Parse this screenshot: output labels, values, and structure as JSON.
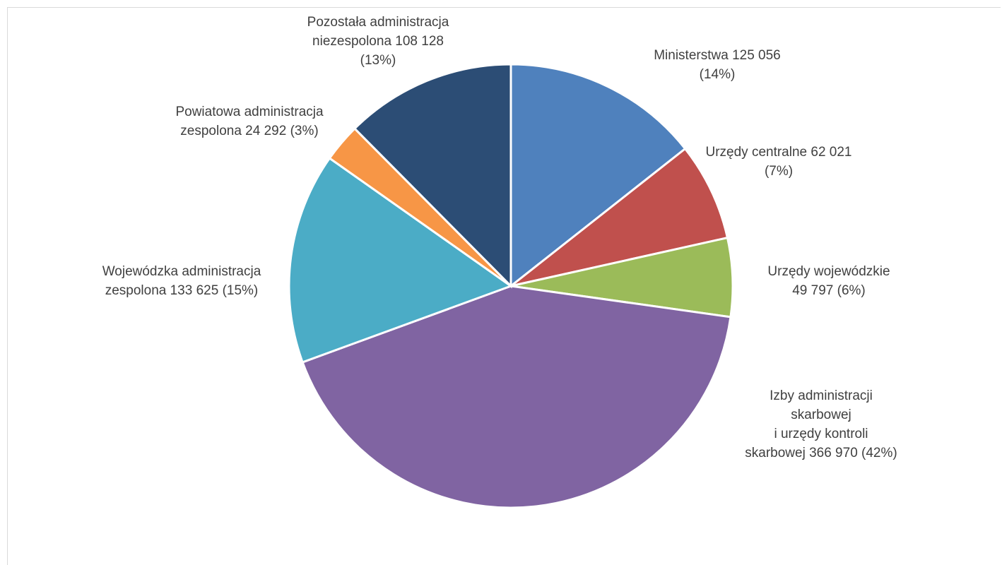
{
  "chart_data": {
    "type": "pie",
    "title": "",
    "start_angle_deg": 0,
    "direction": "clockwise",
    "legend": "none",
    "slices": [
      {
        "name": "Ministerstwa",
        "value": 125056,
        "percent": 14,
        "color": "#4f81bd",
        "label_lines": [
          "Ministerstwa  125 056",
          "(14%)"
        ]
      },
      {
        "name": "Urzędy centralne",
        "value": 62021,
        "percent": 7,
        "color": "#c0504d",
        "label_lines": [
          "Urzędy centralne 62 021",
          "(7%)"
        ]
      },
      {
        "name": "Urzędy wojewódzkie",
        "value": 49797,
        "percent": 6,
        "color": "#9bbb59",
        "label_lines": [
          "Urzędy wojewódzkie",
          "49 797 (6%)"
        ]
      },
      {
        "name": "Izby administracji skarbowej i urzędy kontroli skarbowej",
        "value": 366970,
        "percent": 42,
        "color": "#8064a2",
        "label_lines": [
          "Izby administracji",
          "skarbowej",
          "i urzędy kontroli",
          "skarbowej 366 970 (42%)"
        ]
      },
      {
        "name": "Wojewódzka administracja zespolona",
        "value": 133625,
        "percent": 15,
        "color": "#4bacc6",
        "label_lines": [
          "Wojewódzka administracja",
          "zespolona 133 625 (15%)"
        ]
      },
      {
        "name": "Powiatowa administracja zespolona",
        "value": 24292,
        "percent": 3,
        "color": "#f79646",
        "label_lines": [
          "Powiatowa administracja",
          "zespolona 24 292 (3%)"
        ]
      },
      {
        "name": "Pozostała administracja niezespolona",
        "value": 108128,
        "percent": 13,
        "color": "#2c4d75",
        "label_lines": [
          "Pozostała administracja",
          "niezespolona 108 128",
          "(13%)"
        ]
      }
    ]
  }
}
